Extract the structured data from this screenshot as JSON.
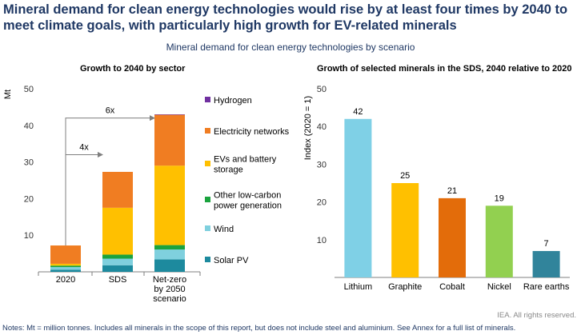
{
  "headline": "Mineral demand for clean energy technologies would rise by at least four times by 2040 to meet climate goals, with particularly high growth for EV-related minerals",
  "subtitle": "Mineral demand for clean energy technologies by scenario",
  "credit": "IEA. All rights reserved.",
  "notes": "Notes: Mt = million tonnes. Includes all minerals in the scope of this report, but does not include steel and aluminium. See Annex for a full list of minerals.",
  "chart_data": [
    {
      "type": "bar",
      "stacked": true,
      "title": "Growth to 2040 by sector",
      "ylabel": "Mt",
      "xlabel": "",
      "ylim": [
        0,
        50
      ],
      "yticks": [
        10,
        20,
        30,
        40,
        50
      ],
      "categories": [
        "2020",
        "SDS",
        "Net-zero by 2050 scenario"
      ],
      "category_lines": [
        [
          "2020"
        ],
        [
          "SDS"
        ],
        [
          "Net-zero",
          "by 2050",
          "scenario"
        ]
      ],
      "series": [
        {
          "name": "Solar PV",
          "color": "#1d8a9e",
          "values": [
            0.6,
            1.8,
            3.4
          ]
        },
        {
          "name": "Wind",
          "color": "#7fd0de",
          "values": [
            0.7,
            1.8,
            2.7
          ]
        },
        {
          "name": "Other low-carbon power generation",
          "color": "#1aa33e",
          "values": [
            0.4,
            1.1,
            1.2
          ]
        },
        {
          "name": "EVs and battery storage",
          "color": "#ffc000",
          "values": [
            0.5,
            12.8,
            21.7
          ]
        },
        {
          "name": "Electricity networks",
          "color": "#f07d22",
          "values": [
            5.0,
            9.8,
            13.9
          ]
        },
        {
          "name": "Hydrogen",
          "color": "#7030a0",
          "values": [
            0,
            0,
            0.1
          ]
        }
      ],
      "legend": [
        {
          "label": "Hydrogen",
          "color": "#7030a0"
        },
        {
          "label": "Electricity networks",
          "color": "#f07d22"
        },
        {
          "label": "EVs and battery storage",
          "color": "#ffc000"
        },
        {
          "label": "Other low-carbon power generation",
          "color": "#1aa33e"
        },
        {
          "label": "Wind",
          "color": "#7fd0de"
        },
        {
          "label": "Solar PV",
          "color": "#1d8a9e"
        }
      ],
      "legend_lines": [
        [
          "Hydrogen"
        ],
        [
          "Electricity networks"
        ],
        [
          "EVs and battery",
          "storage"
        ],
        [
          "Other low-carbon",
          "power generation"
        ],
        [
          "Wind"
        ],
        [
          "Solar PV"
        ]
      ],
      "annotations": [
        {
          "label": "4x",
          "from_category": "2020",
          "to_category": "SDS",
          "level": 32
        },
        {
          "label": "6x",
          "from_category": "2020",
          "to_category": "Net-zero by 2050 scenario",
          "level": 42
        }
      ],
      "grid": false,
      "legend_position": "right"
    },
    {
      "type": "bar",
      "title": "Growth of selected minerals in the SDS, 2040 relative to 2020",
      "ylabel": "Index (2020 = 1)",
      "xlabel": "",
      "ylim": [
        0,
        50
      ],
      "yticks": [
        10,
        20,
        30,
        40,
        50
      ],
      "categories": [
        "Lithium",
        "Graphite",
        "Cobalt",
        "Nickel",
        "Rare earths"
      ],
      "values": [
        42,
        25,
        21,
        19,
        7
      ],
      "colors": [
        "#7fd0e6",
        "#ffc000",
        "#e36c0a",
        "#92d050",
        "#31849b"
      ],
      "grid": false
    }
  ]
}
